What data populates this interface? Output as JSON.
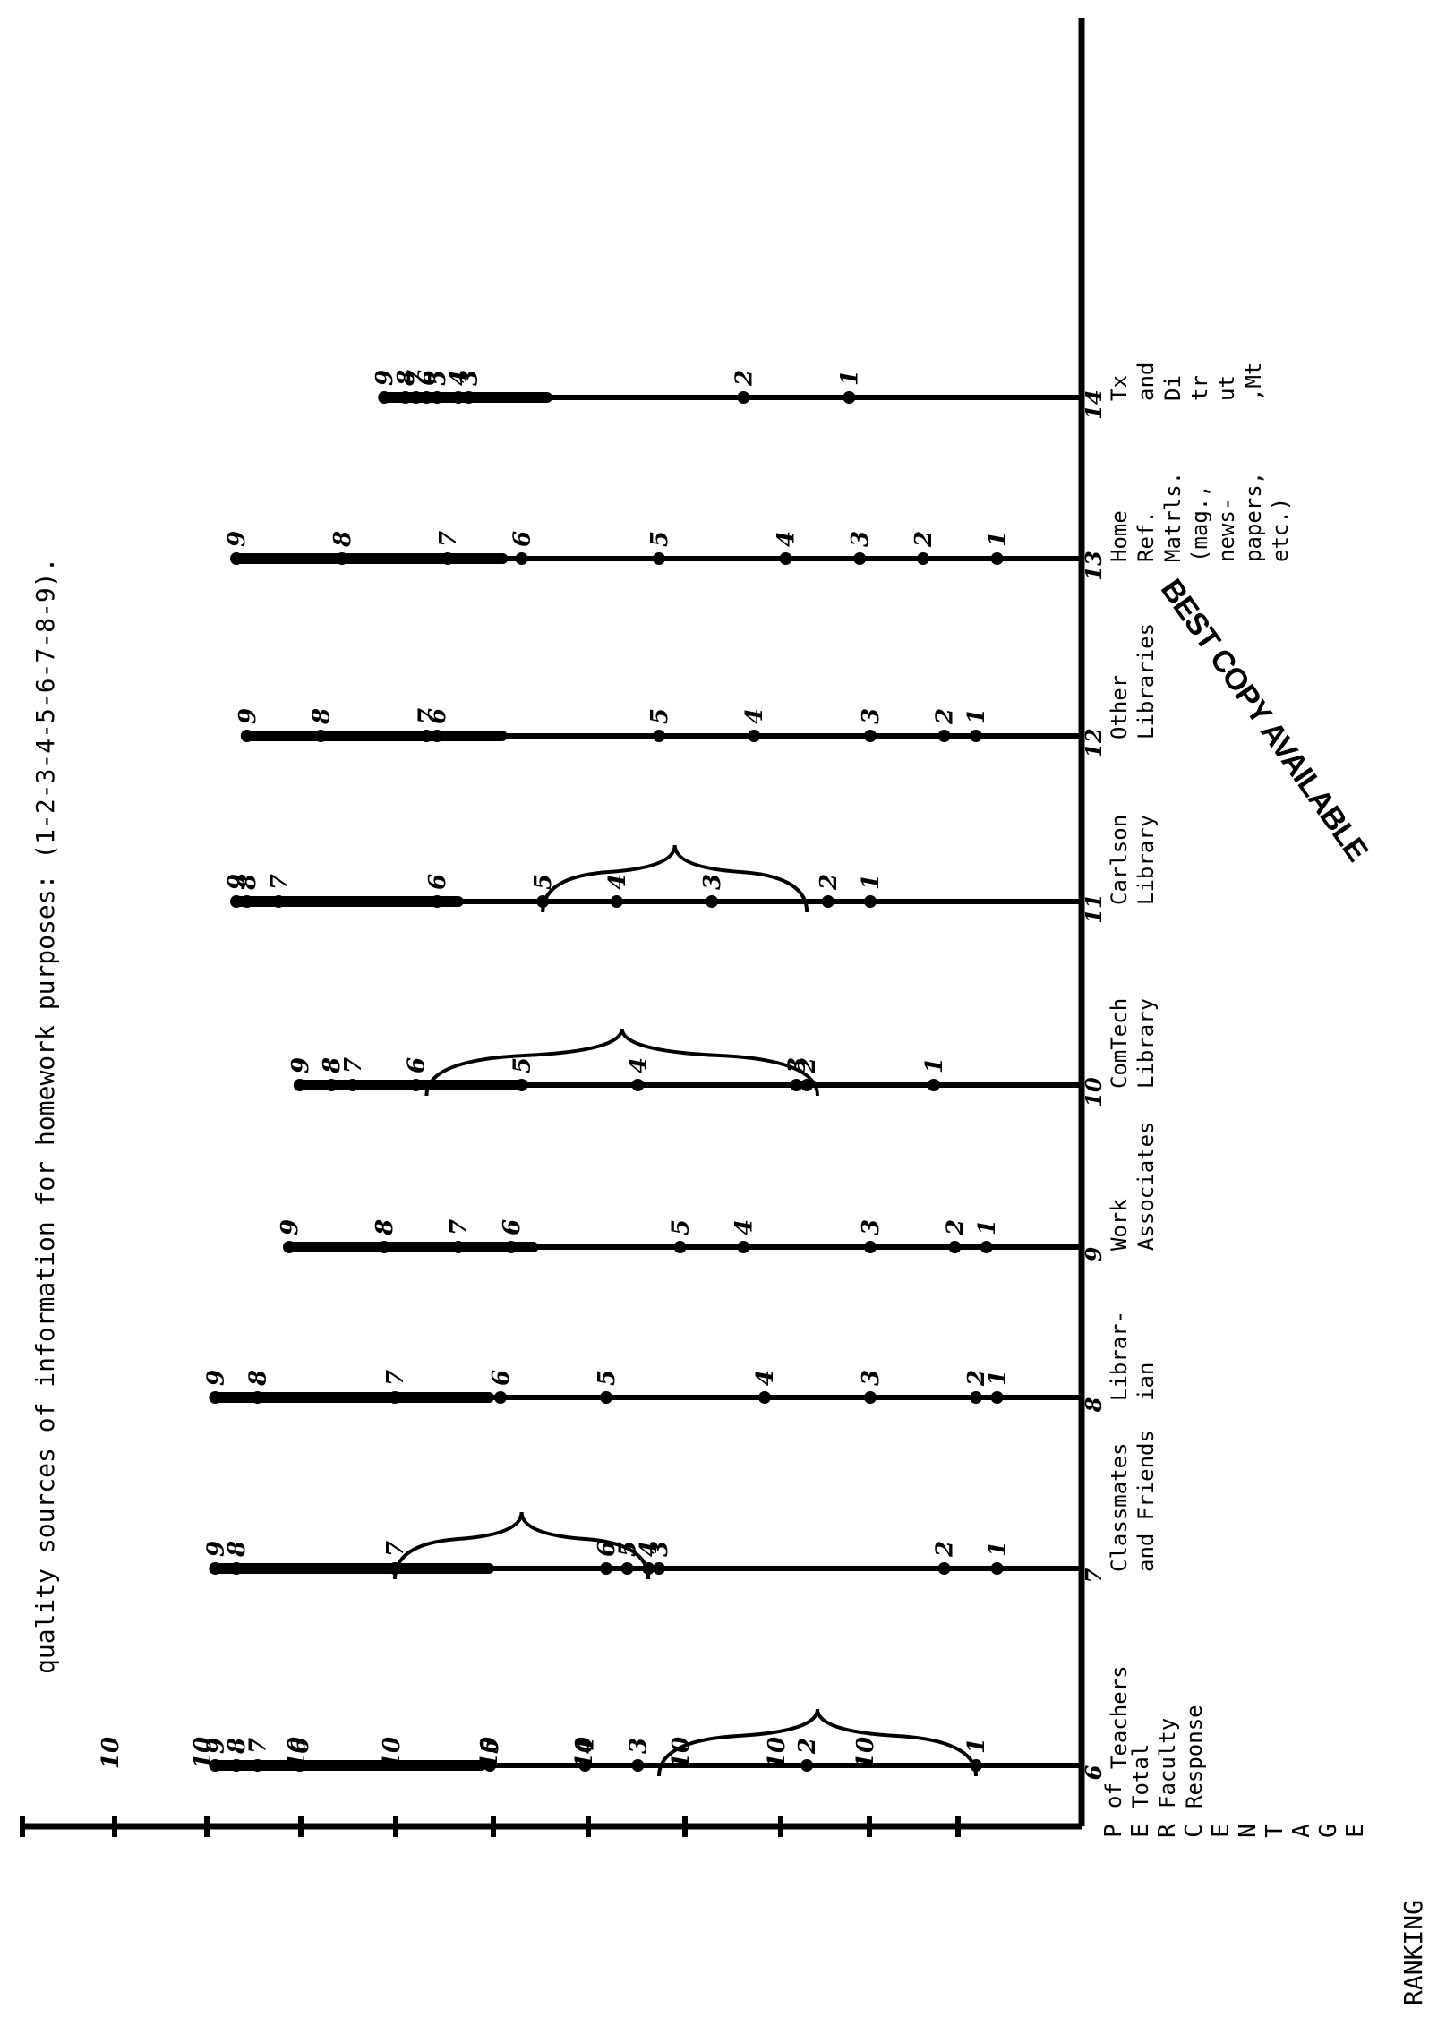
{
  "title_line": "quality sources of information for homework purposes:",
  "ranking_scale": "(1-2-3-4-5-6-7-8-9).",
  "y_axis_label": "RANKING",
  "x_axis_word": "PERCENTAGE",
  "x_axis_caption": [
    "of",
    "Total",
    "Faculty",
    "Response"
  ],
  "stamp": "BEST COPY AVAILABLE",
  "tick_label": "10",
  "chart_data": {
    "type": "dot-strip",
    "note": "Rotated chart: each information source is a horizontal strip; rank points 1-9 are plotted along it against percentage of total faculty response.",
    "sources": [
      {
        "number": "6",
        "lines": [
          "Teachers"
        ]
      },
      {
        "number": "7",
        "lines": [
          "Classmates",
          "and Friends"
        ]
      },
      {
        "number": "8",
        "lines": [
          "Librar-",
          "ian"
        ]
      },
      {
        "number": "9",
        "lines": [
          "Work",
          "Associates"
        ]
      },
      {
        "number": "10",
        "lines": [
          "ComTech",
          "Library"
        ]
      },
      {
        "number": "11",
        "lines": [
          "Carlson",
          "Library"
        ]
      },
      {
        "number": "12",
        "lines": [
          "Other",
          "Libraries"
        ]
      },
      {
        "number": "13",
        "lines": [
          "Home",
          "Ref.",
          "Matrls.",
          "(mag.,",
          "news-",
          "papers,",
          "etc.)"
        ]
      },
      {
        "number": "14",
        "lines": [
          "Tx",
          "and",
          "Di",
          "tr",
          "ut",
          ",Mt"
        ]
      }
    ],
    "rank_labels": [
      "1",
      "2",
      "3",
      "4",
      "5",
      "6",
      "7",
      "8",
      "9"
    ],
    "rank_positions_percent": [
      [
        10,
        26,
        42,
        47,
        56,
        74,
        78,
        80,
        82
      ],
      [
        8,
        13,
        40,
        41,
        43,
        45,
        65,
        80,
        82
      ],
      [
        8,
        10,
        20,
        30,
        45,
        55,
        65,
        78,
        82
      ],
      [
        9,
        12,
        20,
        32,
        38,
        54,
        59,
        66,
        75
      ],
      [
        14,
        26,
        27,
        42,
        53,
        63,
        69,
        71,
        74
      ],
      [
        20,
        24,
        35,
        44,
        51,
        61,
        76,
        79,
        80
      ],
      [
        10,
        13,
        20,
        31,
        40,
        61,
        62,
        72,
        79
      ],
      [
        8,
        15,
        21,
        28,
        40,
        53,
        60,
        70,
        80
      ],
      [
        22,
        32,
        58,
        59,
        61,
        62,
        63,
        64,
        66
      ]
    ],
    "braces": [
      {
        "strip": 0,
        "from": 10,
        "to": 40
      },
      {
        "strip": 1,
        "from": 41,
        "to": 65
      },
      {
        "strip": 4,
        "from": 25,
        "to": 62
      },
      {
        "strip": 5,
        "from": 26,
        "to": 51
      }
    ]
  }
}
